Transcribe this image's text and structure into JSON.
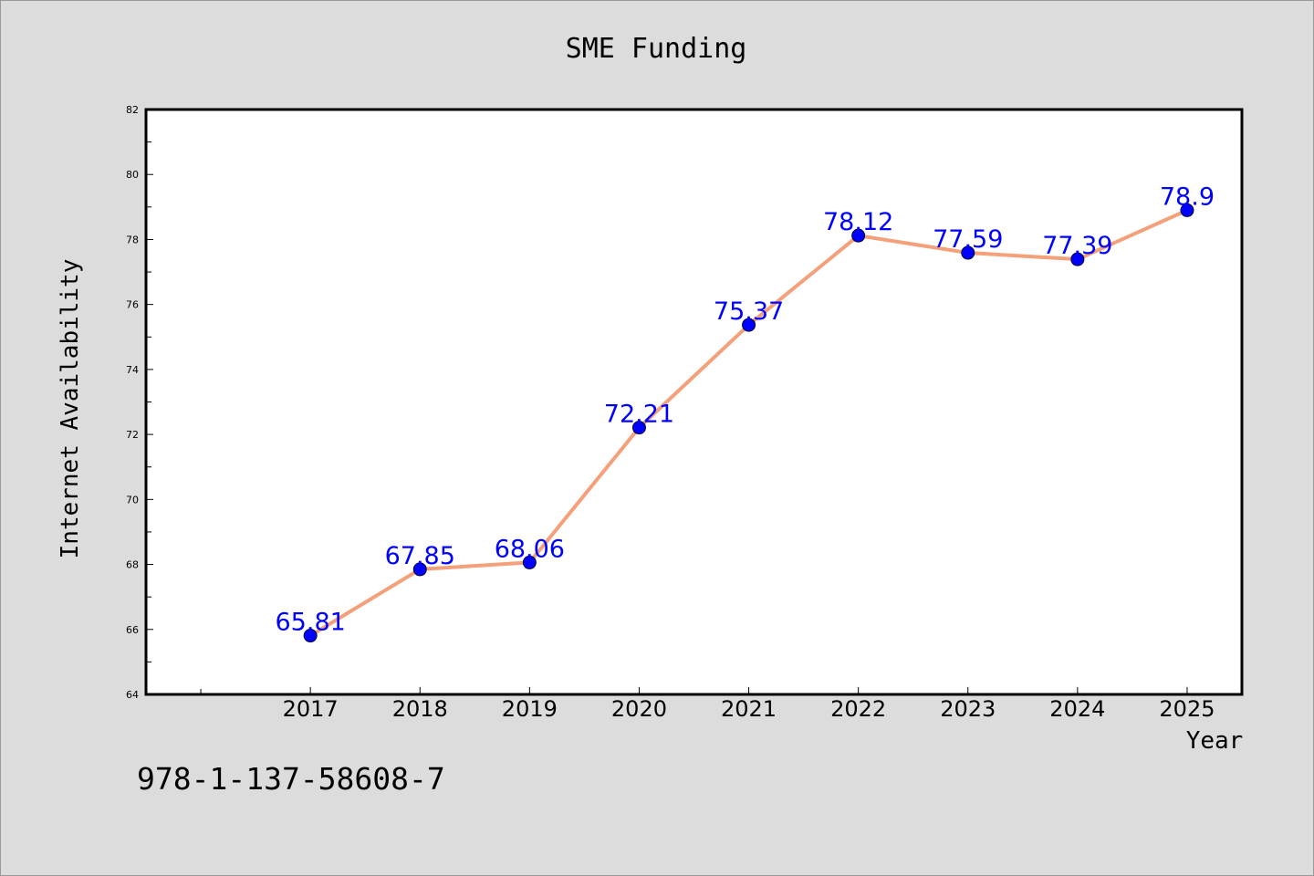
{
  "chart_data": {
    "type": "line",
    "title": "SME Funding",
    "xlabel": "Year",
    "ylabel": "Internet Availability",
    "x": [
      "2017",
      "2018",
      "2019",
      "2020",
      "2021",
      "2022",
      "2023",
      "2024",
      "2025"
    ],
    "series": [
      {
        "values": [
          65.81,
          67.85,
          68.06,
          72.21,
          75.37,
          78.12,
          77.59,
          77.39,
          78.9
        ],
        "labels": [
          "65.81",
          "67.85",
          "68.06",
          "72.21",
          "75.37",
          "78.12",
          "77.59",
          "77.39",
          "78.9"
        ]
      }
    ],
    "ylim": [
      64,
      82
    ],
    "yticks": [
      "64",
      "66",
      "68",
      "70",
      "72",
      "74",
      "76",
      "78",
      "80",
      "82"
    ],
    "grid": false,
    "legend": "none",
    "line_color": "#f4a07a",
    "marker_color": "#0000ff",
    "label_color": "#0000ff"
  },
  "footer_text": "978-1-137-58608-7"
}
